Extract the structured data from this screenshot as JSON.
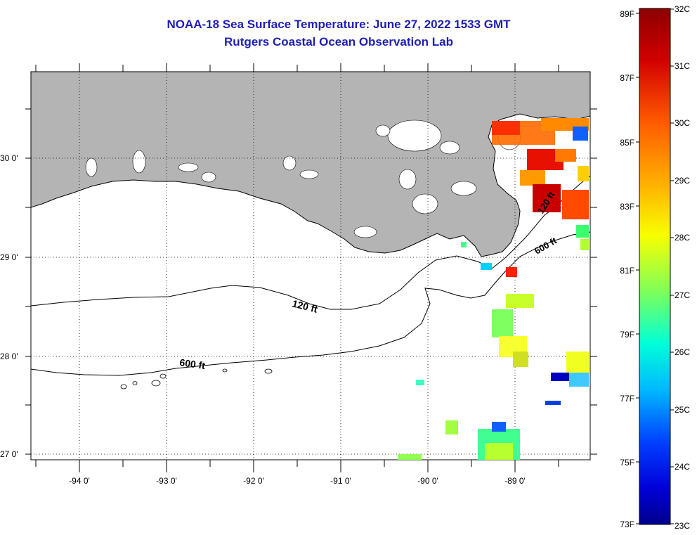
{
  "title": {
    "line1": "NOAA-18 Sea Surface Temperature:  June 27, 2022 1533 GMT",
    "line2": "Rutgers Coastal Ocean Observation Lab"
  },
  "map": {
    "lon_range": [
      -94.5,
      -88.0
    ],
    "lat_range": [
      26.95,
      29.86
    ],
    "lon_tick_labels": [
      "-94 0'",
      "-93 0'",
      "-92 0'",
      "-91 0'",
      "-90 0'",
      "-89 0'"
    ],
    "lat_tick_labels": [
      "30 0'",
      "29 0'",
      "28 0'",
      "27 0'"
    ],
    "land_color": "#b4b4b4",
    "water_color": "#ffffff",
    "contour_labels": {
      "shelf_120": "120 ft",
      "shelf_600": "600 ft",
      "east_120": "120 ft",
      "east_600": "600 ft"
    }
  },
  "colorbar": {
    "fahrenheit_labels": [
      "89F",
      "87F",
      "85F",
      "83F",
      "81F",
      "79F",
      "77F",
      "75F",
      "73F"
    ],
    "celsius_labels": [
      "32C",
      "31C",
      "30C",
      "29C",
      "28C",
      "27C",
      "26C",
      "25C",
      "24C",
      "23C"
    ],
    "colors": [
      "#8b0000",
      "#e00000",
      "#ff6a00",
      "#ffd000",
      "#c8ff2a",
      "#44ffa0",
      "#00dfff",
      "#006cff",
      "#0000d0",
      "#00008b"
    ]
  }
}
